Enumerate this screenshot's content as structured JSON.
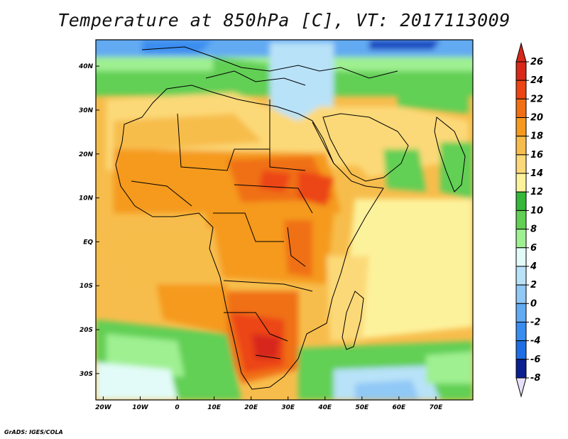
{
  "title": "Temperature at 850hPa [C], VT: 2017113009",
  "credit": "GrADS: IGES/COLA",
  "map": {
    "lon_range": [
      -22,
      80
    ],
    "lat_range": [
      -36,
      46
    ],
    "x_ticks": [
      {
        "value": -20,
        "label": "20W"
      },
      {
        "value": -10,
        "label": "10W"
      },
      {
        "value": 0,
        "label": "0"
      },
      {
        "value": 10,
        "label": "10E"
      },
      {
        "value": 20,
        "label": "20E"
      },
      {
        "value": 30,
        "label": "30E"
      },
      {
        "value": 40,
        "label": "40E"
      },
      {
        "value": 50,
        "label": "50E"
      },
      {
        "value": 60,
        "label": "60E"
      },
      {
        "value": 70,
        "label": "70E"
      }
    ],
    "y_ticks": [
      {
        "value": 40,
        "label": "40N"
      },
      {
        "value": 30,
        "label": "30N"
      },
      {
        "value": 20,
        "label": "20N"
      },
      {
        "value": 10,
        "label": "10N"
      },
      {
        "value": 0,
        "label": "EQ"
      },
      {
        "value": -10,
        "label": "10S"
      },
      {
        "value": -20,
        "label": "20S"
      },
      {
        "value": -30,
        "label": "30S"
      }
    ]
  },
  "colorbar": {
    "levels": [
      {
        "label": "26",
        "color": "#d7281a"
      },
      {
        "label": "24",
        "color": "#ec4412"
      },
      {
        "label": "22",
        "color": "#f06f12"
      },
      {
        "label": "20",
        "color": "#f59a1e"
      },
      {
        "label": "18",
        "color": "#f7bd4c"
      },
      {
        "label": "16",
        "color": "#fcd978"
      },
      {
        "label": "14",
        "color": "#fdf29c"
      },
      {
        "label": "12",
        "color": "#35b73a"
      },
      {
        "label": "10",
        "color": "#62cf55"
      },
      {
        "label": "8",
        "color": "#9ff091"
      },
      {
        "label": "6",
        "color": "#e2fbf8"
      },
      {
        "label": "4",
        "color": "#b8e2f8"
      },
      {
        "label": "2",
        "color": "#90c8f6"
      },
      {
        "label": "0",
        "color": "#62aaf2"
      },
      {
        "label": "-2",
        "color": "#3a8df0"
      },
      {
        "label": "-4",
        "color": "#1f6ee6"
      },
      {
        "label": "-6",
        "color": "#1447c0"
      },
      {
        "label": "-8",
        "color": "#0c1f90"
      }
    ],
    "under_color": "#e8e0f8",
    "over_color": "#d7281a"
  }
}
